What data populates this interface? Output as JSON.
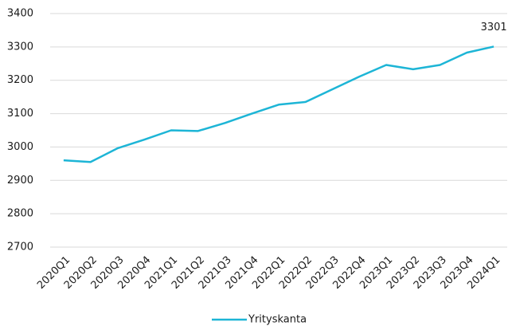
{
  "chart_data": {
    "type": "line",
    "categories": [
      "2020Q1",
      "2020Q2",
      "2020Q3",
      "2020Q4",
      "2021Q1",
      "2021Q2",
      "2021Q3",
      "2021Q4",
      "2022Q1",
      "2022Q2",
      "2022Q3",
      "2022Q4",
      "2023Q1",
      "2023Q2",
      "2023Q3",
      "2023Q4",
      "2024Q1"
    ],
    "series": [
      {
        "name": "Yrityskanta",
        "color": "#1db5d6",
        "values": [
          2960,
          2955,
          2996,
          3022,
          3050,
          3048,
          3072,
          3100,
          3127,
          3135,
          3173,
          3211,
          3246,
          3233,
          3246,
          3283,
          3301
        ]
      }
    ],
    "labeled_points": [
      16
    ],
    "ylim": [
      2700,
      3400
    ],
    "yticks": [
      2700,
      2800,
      2900,
      3000,
      3100,
      3200,
      3300,
      3400
    ],
    "grid": true,
    "legend": "bottom"
  }
}
